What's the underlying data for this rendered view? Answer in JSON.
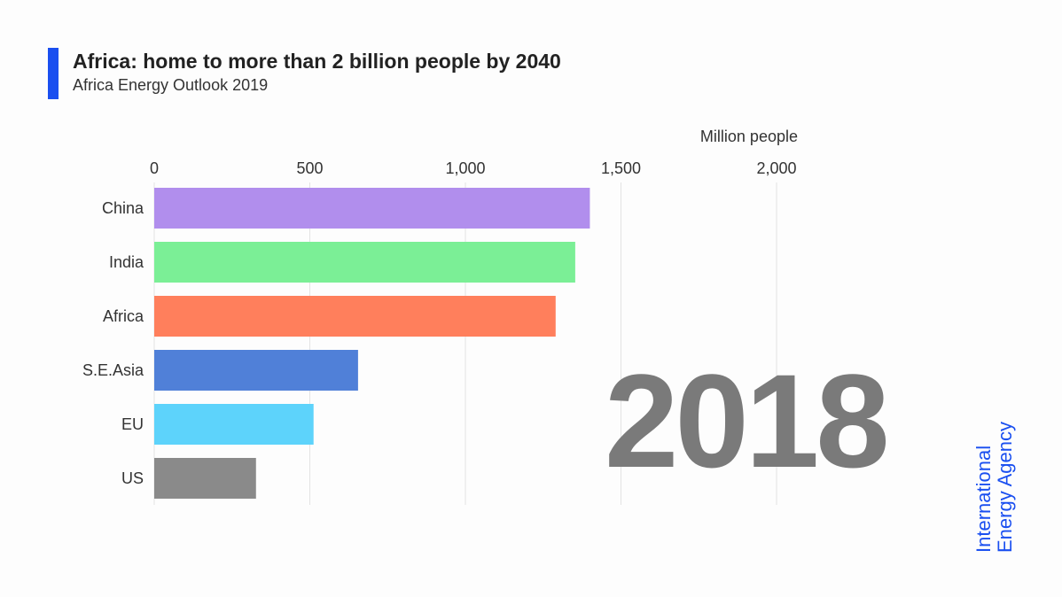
{
  "header": {
    "title": "Africa: home to more than 2 billion people by 2040",
    "subtitle": "Africa Energy Outlook 2019"
  },
  "year_label": "2018",
  "logo": {
    "line1": "International",
    "line2": "Energy Agency",
    "color": "#1a4ff0"
  },
  "chart_data": {
    "type": "bar",
    "orientation": "horizontal",
    "xlabel": "Million people",
    "xlim": [
      0,
      2000
    ],
    "ticks": [
      0,
      500,
      1000,
      1500,
      2000
    ],
    "tick_labels": [
      "0",
      "500",
      "1,000",
      "1,500",
      "2,000"
    ],
    "grid": true,
    "categories": [
      "China",
      "India",
      "Africa",
      "S.E.Asia",
      "EU",
      "US"
    ],
    "values": [
      1400,
      1353,
      1290,
      655,
      512,
      327
    ],
    "colors": [
      "#b18eed",
      "#7bef96",
      "#ff7f5c",
      "#5080d8",
      "#5dd3fb",
      "#8a8a8a"
    ]
  }
}
